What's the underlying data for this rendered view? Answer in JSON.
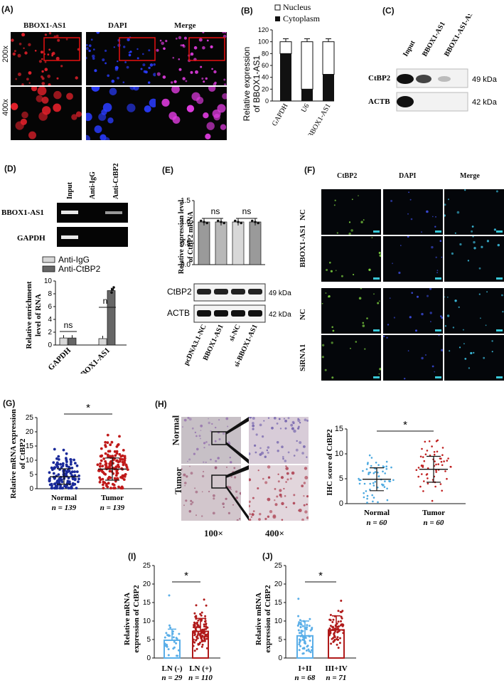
{
  "A": {
    "label": "(A)",
    "cols": [
      "BBOX1-AS1",
      "DAPI",
      "Merge"
    ],
    "rows": [
      "200x",
      "400x"
    ]
  },
  "B": {
    "label": "(B)",
    "legend": [
      "Nucleus",
      "Cytoplasm"
    ],
    "ylabel_line1": "Relative expression",
    "ylabel_line2": "of BBOX1-AS1",
    "chart_data": {
      "type": "bar",
      "stacked": true,
      "categories": [
        "GAPDH",
        "U6",
        "BBOX1-AS1"
      ],
      "series": [
        {
          "name": "Nucleus",
          "values": [
            20,
            80,
            55
          ]
        },
        {
          "name": "Cytoplasm",
          "values": [
            80,
            20,
            45
          ]
        }
      ],
      "ylim": [
        0,
        120
      ],
      "yticks": [
        0,
        20,
        40,
        60,
        80,
        100,
        120
      ]
    }
  },
  "C": {
    "label": "(C)",
    "lanes": [
      "Input",
      "BBOX1-AS1",
      "BBOX1-AS1-AS"
    ],
    "rows": [
      {
        "name": "CtBP2",
        "kda": "49 kDa"
      },
      {
        "name": "ACTB",
        "kda": "42 kDa"
      }
    ]
  },
  "D": {
    "label": "(D)",
    "lanes": [
      "Input",
      "Anti-IgG",
      "Anti-CtBP2"
    ],
    "gel_rows": [
      "BBOX1-AS1",
      "GAPDH"
    ],
    "legend": [
      "Anti-IgG",
      "Anti-CtBP2"
    ],
    "ylabel_line1": "Relative enrichment",
    "ylabel_line2": "level of RNA",
    "sig": [
      "ns",
      "ns"
    ],
    "chart_data": {
      "type": "bar",
      "categories": [
        "GAPDH",
        "BBOX1-AS1"
      ],
      "series": [
        {
          "name": "Anti-IgG",
          "values": [
            1.1,
            1.0
          ]
        },
        {
          "name": "Anti-CtBP2",
          "values": [
            1.1,
            8.5
          ]
        }
      ],
      "ylim": [
        0,
        10
      ],
      "yticks": [
        0,
        2,
        4,
        6,
        8,
        10
      ]
    }
  },
  "E": {
    "label": "(E)",
    "ylabel_line1": "Relative expression level",
    "ylabel_line2": "of CtBP2 mRNA",
    "sig": [
      "ns",
      "ns"
    ],
    "blot_rows": [
      {
        "name": "CtBP2",
        "kda": "49 kDa"
      },
      {
        "name": "ACTB",
        "kda": "42 kDa"
      }
    ],
    "chart_data": {
      "type": "bar",
      "categories": [
        "pcDNA3.1-NC",
        "BBOX1-AS1",
        "si-NC",
        "si-BBOX1-AS1"
      ],
      "values": [
        1.0,
        1.0,
        1.0,
        1.0
      ],
      "ylim": [
        0,
        1.5
      ],
      "yticks": [
        0.0,
        0.5,
        1.0,
        1.5
      ]
    }
  },
  "F": {
    "label": "(F)",
    "cols": [
      "CtBP2",
      "DAPI",
      "Merge"
    ],
    "rows_top": [
      "NC",
      "BBOX1-AS1"
    ],
    "rows_bottom": [
      "NC",
      "SiRNA1"
    ]
  },
  "G": {
    "label": "(G)",
    "ylabel_line1": "Relative mRNA expression",
    "ylabel_line2": "of CtBP2",
    "sig": "*",
    "groups": [
      {
        "name": "Normal",
        "n": "139"
      },
      {
        "name": "Tumor",
        "n": "139"
      }
    ],
    "chart_data": {
      "type": "scatter",
      "categories": [
        "Normal",
        "Tumor"
      ],
      "series": [
        {
          "name": "Normal",
          "mean": 4.2,
          "sd_low": 1.6,
          "sd_high": 7.0,
          "max": 14,
          "min": 0
        },
        {
          "name": "Tumor",
          "mean": 6.9,
          "sd_low": 3.0,
          "sd_high": 10.8,
          "max": 19.5,
          "min": 0
        }
      ],
      "ylim": [
        0,
        25
      ],
      "yticks": [
        0,
        5,
        10,
        15,
        20,
        25
      ]
    }
  },
  "H": {
    "label": "(H)",
    "rows": [
      "Normal",
      "Tumor"
    ],
    "mags": [
      "100×",
      "400×"
    ],
    "ylabel": "IHC score of CtBP2",
    "sig": "*",
    "groups": [
      {
        "name": "Normal",
        "n": "60"
      },
      {
        "name": "Tumor",
        "n": "60"
      }
    ],
    "chart_data": {
      "type": "scatter",
      "categories": [
        "Normal",
        "Tumor"
      ],
      "series": [
        {
          "name": "Normal",
          "mean": 4.9,
          "sd_low": 2.6,
          "sd_high": 7.2
        },
        {
          "name": "Tumor",
          "mean": 6.9,
          "sd_low": 4.3,
          "sd_high": 9.5
        }
      ],
      "ylim": [
        0,
        15
      ],
      "yticks": [
        0,
        5,
        10,
        15
      ]
    }
  },
  "I": {
    "label": "(I)",
    "ylabel_line1": "Relative mRNA",
    "ylabel_line2": "expression of CtBP2",
    "sig": "*",
    "groups": [
      {
        "name": "LN (-)",
        "n": "29"
      },
      {
        "name": "LN (+)",
        "n": "110"
      }
    ],
    "chart_data": {
      "type": "bar",
      "categories": [
        "LN (-)",
        "LN (+)"
      ],
      "values": [
        4.8,
        7.2
      ],
      "errors": [
        3.0,
        3.5
      ],
      "ylim": [
        0,
        25
      ],
      "yticks": [
        0,
        5,
        10,
        15,
        20,
        25
      ]
    }
  },
  "J": {
    "label": "(J)",
    "ylabel_line1": "Relative mRNA",
    "ylabel_line2": "expression of CtBP2",
    "sig": "*",
    "groups": [
      {
        "name": "I+II",
        "n": "68"
      },
      {
        "name": "III+IV",
        "n": "71"
      }
    ],
    "chart_data": {
      "type": "bar",
      "categories": [
        "I+II",
        "III+IV"
      ],
      "values": [
        6.0,
        7.6
      ],
      "errors": [
        4.0,
        3.8
      ],
      "ylim": [
        0,
        25
      ],
      "yticks": [
        0,
        5,
        10,
        15,
        20,
        25
      ]
    }
  },
  "n_prefix": "n = ",
  "colors": {
    "red_cells": "#e0202a",
    "blue_cells": "#2a3cff",
    "magenta_cells": "#e03ce0",
    "scatter_blue": "#1a2a9a",
    "scatter_red": "#c01a1a",
    "ihc_blue": "#4aa8e0",
    "ihc_red": "#c02020",
    "bar_blue": "#5aaee8",
    "bar_red": "#b01a1a",
    "fluor_green": "#7cd040"
  }
}
